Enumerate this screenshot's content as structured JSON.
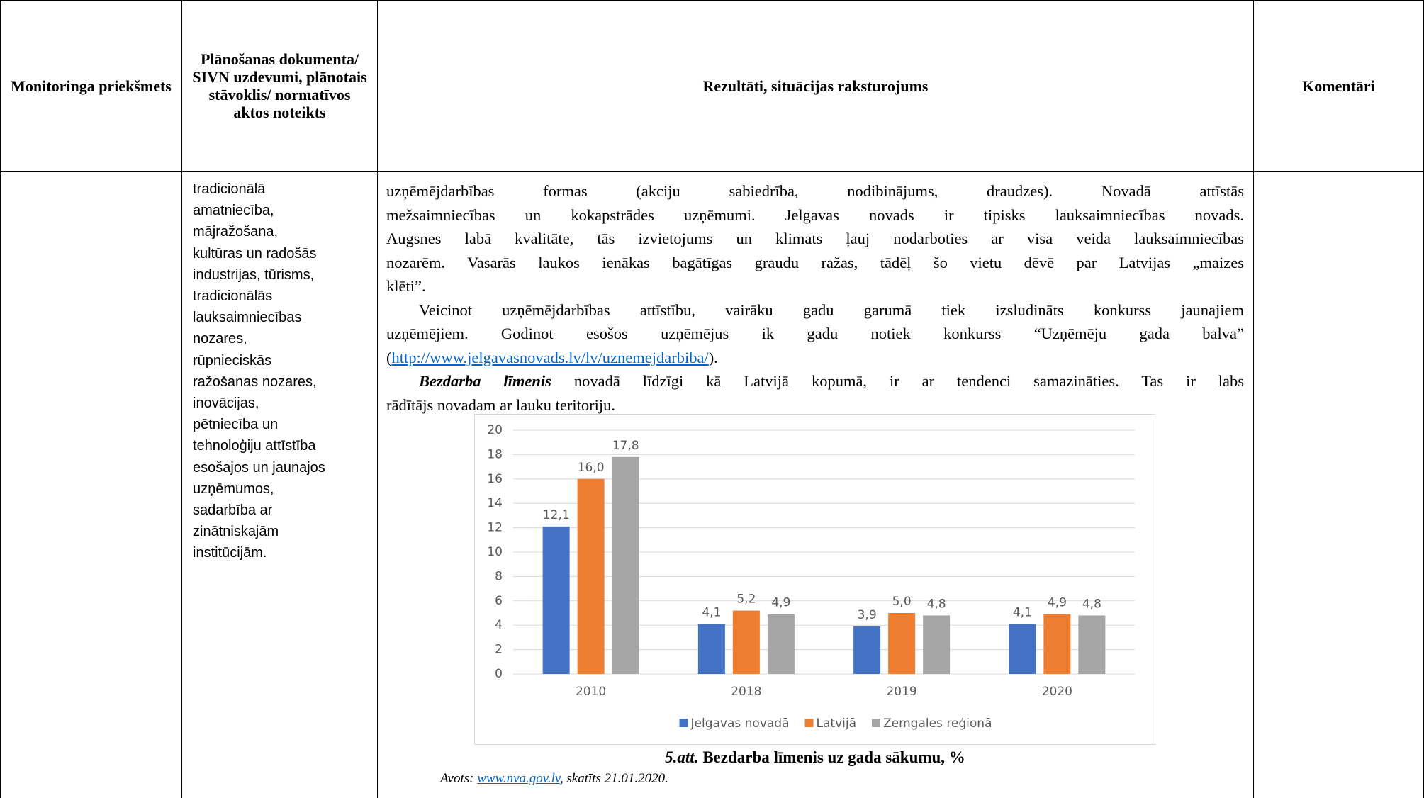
{
  "table": {
    "headers": [
      "Monitoringa priekšmets",
      "Plānošanas dokumenta/ SIVN uzdevumi, plānotais stāvoklis/ normatīvos aktos noteikts",
      "Rezultāti, situācijas raksturojums",
      "Komentāri"
    ],
    "row": {
      "task_lines": [
        "tradicionālā",
        "amatniecība,",
        "mājražošana,",
        "kultūras un radošās",
        "industrijas, tūrisms,",
        "tradicionālās",
        "lauksaimniecības",
        "nozares,",
        "rūpnieciskās",
        "ražošanas nozares,",
        "inovācijas,",
        "pētniecība un",
        "tehnoloģiju attīstība",
        "esošajos un jaunajos",
        "uzņēmumos,",
        "sadarbība ar",
        "zinātniskajām",
        "institūcijām."
      ],
      "results": {
        "p1": [
          "uzņēmējdarbības formas (akciju sabiedrība, nodibinājums, draudzes). Novadā attīstās",
          "mežsaimniecības un kokapstrādes uzņēmumi. Jelgavas novads ir tipisks lauksaimniecības novads.",
          "Augsnes labā kvalitāte, tās izvietojums un klimats ļauj nodarboties ar visa veida lauksaimniecības",
          "nozarēm. Vasarās laukos ienākas bagātīgas graudu ražas, tādēļ šo vietu dēvē par Latvijas „maizes",
          "klēti”."
        ],
        "p2": [
          "Veicinot uzņēmējdarbības attīstību, vairāku gadu garumā tiek izsludināts konkurss jaunajiem",
          "uzņēmējiem. Godinot esošos uzņēmējus ik gadu notiek konkurss “Uzņēmēju gada balva”"
        ],
        "p2_link": {
          "open": "(",
          "url": "http://www.jelgavasnovads.lv/lv/uznemejdarbiba/",
          "close": ")."
        },
        "p3_lead": "Bezdarba līmenis",
        "p3": [
          " novadā līdzīgi kā Latvijā kopumā, ir ar tendenci samazināties. Tas ir labs",
          "rādītājs novadam ar lauku teritoriju."
        ],
        "caption": {
          "lead": "5.att.",
          "text": " Bezdarba līmenis uz gada sākumu, %"
        },
        "source": {
          "prefix": "Avots: ",
          "link": "www.nva.gov.lv",
          "suffix": ", skatīts 21.01.2020."
        }
      }
    }
  },
  "chart_data": {
    "type": "bar",
    "categories": [
      "2010",
      "2018",
      "2019",
      "2020"
    ],
    "series": [
      {
        "name": "Jelgavas novadā",
        "color": "#4472c4",
        "values": [
          12.1,
          4.1,
          3.9,
          4.1
        ],
        "value_labels": [
          "12,1",
          "4,1",
          "3,9",
          "4,1"
        ]
      },
      {
        "name": "Latvijā",
        "color": "#ed7d31",
        "values": [
          16.0,
          5.2,
          5.0,
          4.9
        ],
        "value_labels": [
          "16,0",
          "5,2",
          "5,0",
          "4,9"
        ]
      },
      {
        "name": "Zemgales reģionā",
        "color": "#a5a5a5",
        "values": [
          17.8,
          4.9,
          4.8,
          4.8
        ],
        "value_labels": [
          "17,8",
          "4,9",
          "4,8",
          "4,8"
        ]
      }
    ],
    "ylim": [
      0,
      20
    ],
    "yticks": [
      0,
      2,
      4,
      6,
      8,
      10,
      12,
      14,
      16,
      18,
      20
    ],
    "grid": true,
    "legend": "bottom"
  }
}
